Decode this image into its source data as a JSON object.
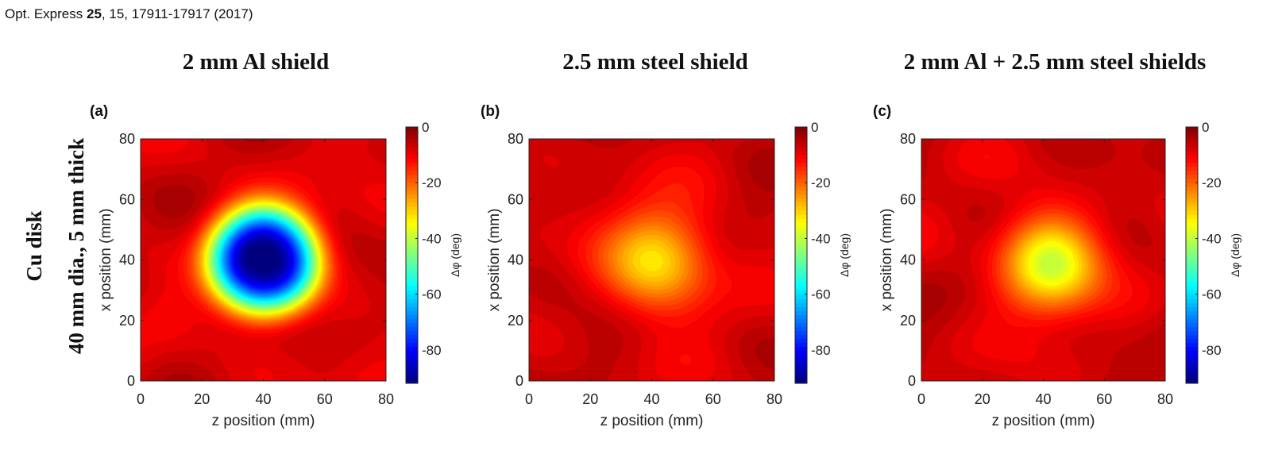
{
  "citation": {
    "journal": "Opt. Express",
    "volume": "25",
    "rest": ", 15, 17911-17917 (2017)"
  },
  "row_label": {
    "line1": "Cu disk",
    "line2": "40 mm dia., 5 mm thick"
  },
  "chart_data": [
    {
      "type": "heatmap",
      "panel_label": "(a)",
      "title": "2 mm Al shield",
      "xlabel": "z position (mm)",
      "ylabel": "x position (mm)",
      "xlim": [
        0,
        80
      ],
      "ylim": [
        0,
        80
      ],
      "xticks": [
        0,
        20,
        40,
        60,
        80
      ],
      "yticks": [
        0,
        20,
        40,
        60,
        80
      ],
      "colorbar": {
        "label": "Δφ (deg)",
        "range": [
          -92,
          0
        ],
        "ticks": [
          0,
          -20,
          -40,
          -60,
          -80
        ],
        "colormap": "jet"
      },
      "feature": {
        "center_z_mm": 40,
        "center_x_mm": 40,
        "min_value_deg": -92,
        "background_deg": -8,
        "half_width_mm": 17.5,
        "shape_exponent": 3
      }
    },
    {
      "type": "heatmap",
      "panel_label": "(b)",
      "title": "2.5 mm steel shield",
      "xlabel": "z position (mm)",
      "ylabel": "x position (mm)",
      "xlim": [
        0,
        80
      ],
      "ylim": [
        0,
        80
      ],
      "xticks": [
        0,
        20,
        40,
        60,
        80
      ],
      "yticks": [
        0,
        20,
        40,
        60,
        80
      ],
      "colorbar": {
        "label": "Δφ (deg)",
        "range": [
          -92,
          0
        ],
        "ticks": [
          0,
          -20,
          -40,
          -60,
          -80
        ],
        "colormap": "jet"
      },
      "feature": {
        "center_z_mm": 42,
        "center_x_mm": 40,
        "min_value_deg": -33,
        "background_deg": -7,
        "half_width_mm": 17,
        "shape_exponent": 2
      }
    },
    {
      "type": "heatmap",
      "panel_label": "(c)",
      "title": "2 mm Al + 2.5 mm steel shields",
      "xlabel": "z position (mm)",
      "ylabel": "x position (mm)",
      "xlim": [
        0,
        80
      ],
      "ylim": [
        0,
        80
      ],
      "xticks": [
        0,
        20,
        40,
        60,
        80
      ],
      "yticks": [
        0,
        20,
        40,
        60,
        80
      ],
      "colorbar": {
        "label": "Δφ (deg)",
        "range": [
          -92,
          0
        ],
        "ticks": [
          0,
          -20,
          -40,
          -60,
          -80
        ],
        "colormap": "jet"
      },
      "feature": {
        "center_z_mm": 42,
        "center_x_mm": 39,
        "min_value_deg": -39,
        "background_deg": -7,
        "half_width_mm": 16,
        "shape_exponent": 2
      }
    }
  ]
}
